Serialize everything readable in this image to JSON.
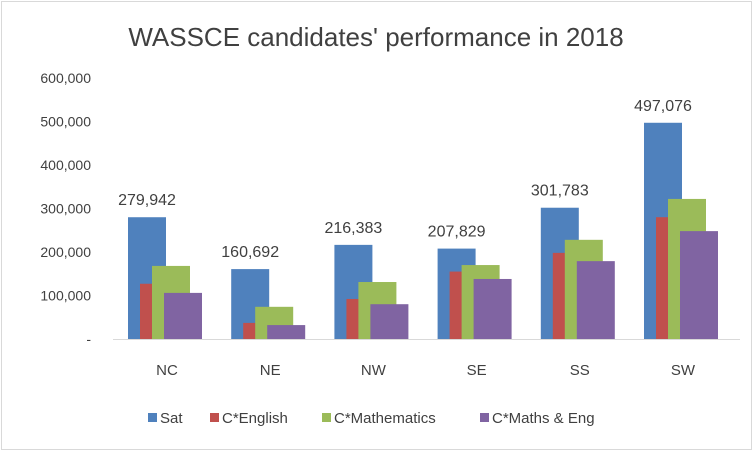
{
  "chart_data": {
    "type": "bar",
    "title": "WASSCE candidates' performance in 2018",
    "xlabel": "",
    "ylabel": "",
    "categories": [
      "NC",
      "NE",
      "NW",
      "SE",
      "SS",
      "SW"
    ],
    "ylim": [
      0,
      600000
    ],
    "yticks": [
      0,
      100000,
      200000,
      300000,
      400000,
      500000,
      600000
    ],
    "ytick_labels": [
      "-",
      "100,000",
      "200,000",
      "300,000",
      "400,000",
      "500,000",
      "600,000"
    ],
    "grid": false,
    "legend": "bottom",
    "series": [
      {
        "name": "Sat",
        "color": "#4f81bd",
        "values": [
          279942,
          160692,
          216383,
          207829,
          301783,
          497076
        ],
        "data_labels": [
          "279,942",
          "160,692",
          "216,383",
          "207,829",
          "301,783",
          "497,076"
        ]
      },
      {
        "name": "C*English",
        "color": "#c0504d",
        "values": [
          127000,
          37000,
          92000,
          155000,
          198000,
          280000
        ]
      },
      {
        "name": "C*Mathematics",
        "color": "#9bbb59",
        "values": [
          168000,
          74000,
          131000,
          170000,
          228000,
          322000
        ]
      },
      {
        "name": "C*Maths & Eng",
        "color": "#8064a2",
        "values": [
          106000,
          32000,
          80000,
          138000,
          179000,
          248000
        ]
      }
    ]
  }
}
